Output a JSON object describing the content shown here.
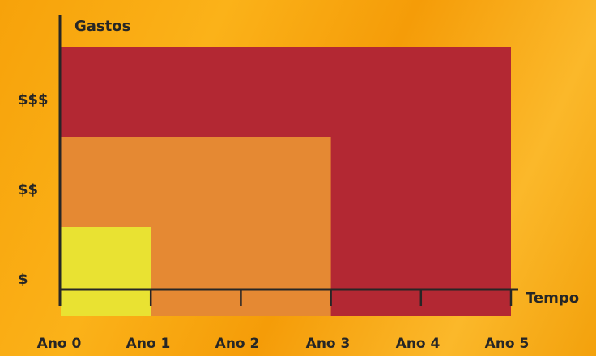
{
  "chart_data": {
    "type": "area",
    "title": "",
    "xlabel": "Tempo",
    "ylabel": "Gastos",
    "x_ticks": [
      "Ano 0",
      "Ano 1",
      "Ano 2",
      "Ano 3",
      "Ano 4",
      "Ano 5"
    ],
    "y_ticks": [
      "$",
      "$$",
      "$$$"
    ],
    "ylim": [
      0,
      3
    ],
    "xlim": [
      0,
      5
    ],
    "legend": "none",
    "grid": false,
    "series": [
      {
        "from_year": 0,
        "to_year": 5,
        "level": 3,
        "color": "#b32833"
      },
      {
        "from_year": 0,
        "to_year": 3,
        "level": 2,
        "color": "#e58933"
      },
      {
        "from_year": 0,
        "to_year": 1,
        "level": 1,
        "color": "#e9e232"
      }
    ],
    "axis_color": "#262626"
  }
}
